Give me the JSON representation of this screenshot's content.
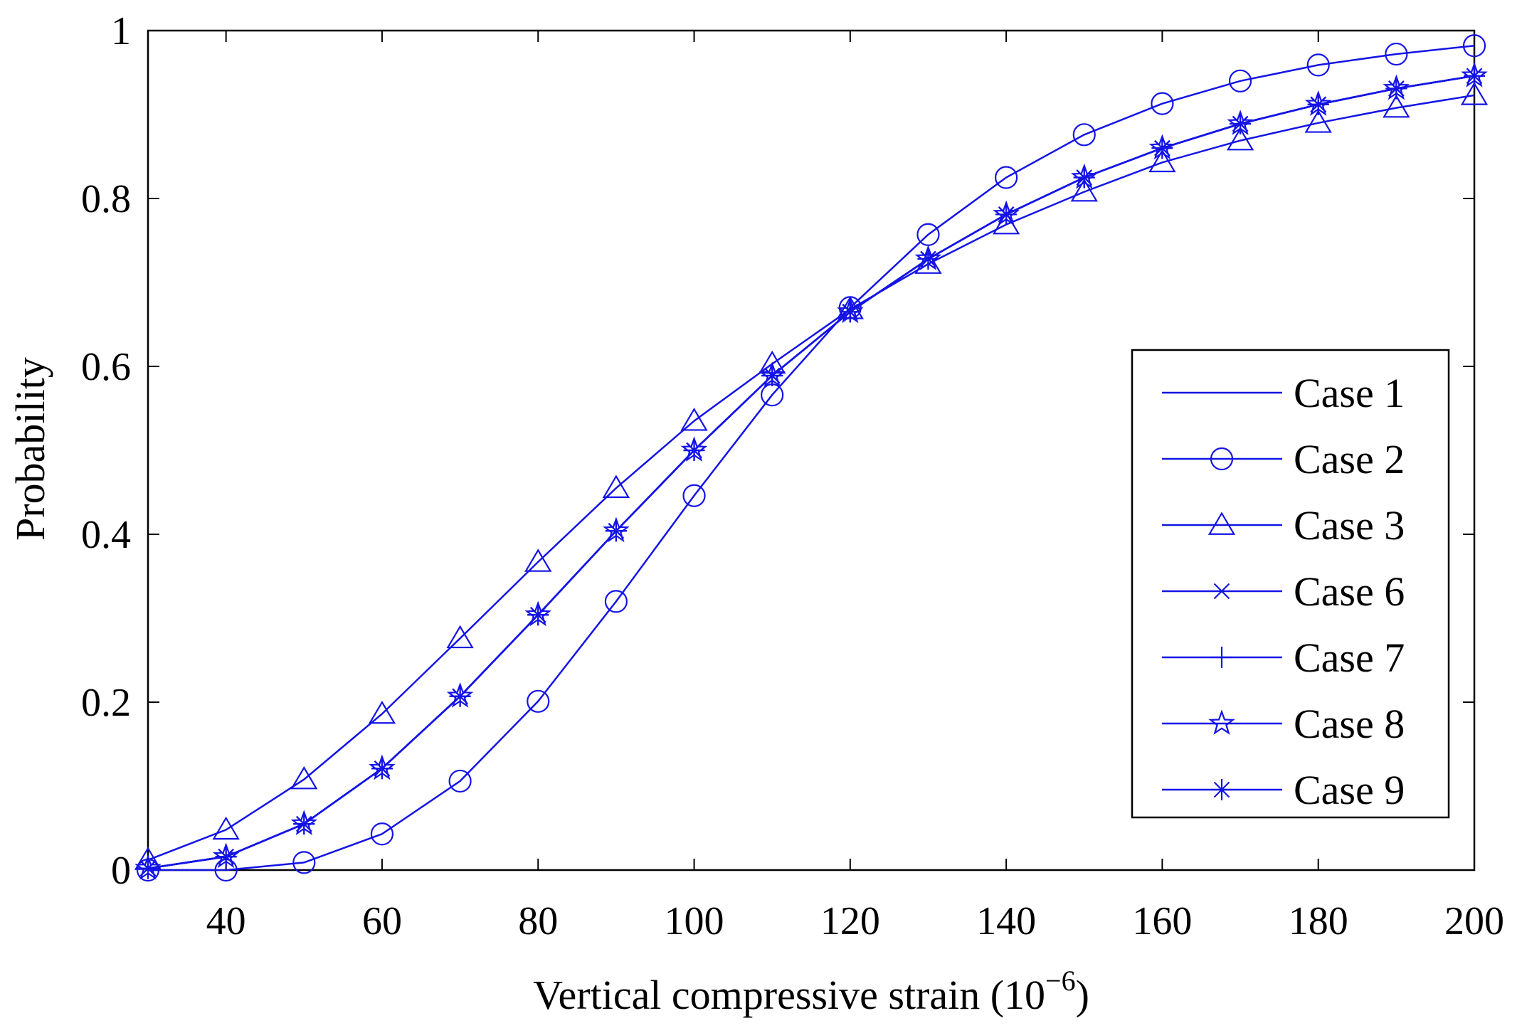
{
  "chart_data": {
    "type": "line",
    "title": "",
    "xlabel": "Vertical compressive strain (10",
    "xlabel_exponent": "−6",
    "xlabel_close": ")",
    "ylabel": "Probability",
    "xlim": [
      30,
      200
    ],
    "ylim": [
      0,
      1
    ],
    "xticks": [
      40,
      60,
      80,
      100,
      120,
      140,
      160,
      180,
      200
    ],
    "yticks": [
      0,
      0.2,
      0.4,
      0.6,
      0.8,
      1
    ],
    "ytick_labels": [
      "0",
      "0.2",
      "0.4",
      "0.6",
      "0.8",
      "1"
    ],
    "grid": false,
    "legend_position": "right",
    "line_color": "#1414e6",
    "x": [
      30,
      40,
      50,
      60,
      70,
      80,
      90,
      100,
      110,
      120,
      130,
      140,
      150,
      160,
      170,
      180,
      190,
      200
    ],
    "series": [
      {
        "name": "Case 1",
        "marker": "none",
        "values": [
          0.002,
          0.016,
          0.055,
          0.121,
          0.207,
          0.304,
          0.404,
          0.5,
          0.589,
          0.665,
          0.728,
          0.781,
          0.825,
          0.86,
          0.889,
          0.912,
          0.931,
          0.946
        ]
      },
      {
        "name": "Case 2",
        "marker": "circle",
        "values": [
          0.0,
          0.0,
          0.009,
          0.043,
          0.106,
          0.201,
          0.32,
          0.446,
          0.566,
          0.67,
          0.757,
          0.825,
          0.876,
          0.913,
          0.94,
          0.959,
          0.972,
          0.982
        ]
      },
      {
        "name": "Case 3",
        "marker": "triangle",
        "values": [
          0.012,
          0.048,
          0.108,
          0.186,
          0.276,
          0.367,
          0.455,
          0.535,
          0.603,
          0.668,
          0.722,
          0.769,
          0.808,
          0.843,
          0.869,
          0.89,
          0.908,
          0.923
        ]
      },
      {
        "name": "Case 6",
        "marker": "x",
        "values": [
          0.002,
          0.016,
          0.055,
          0.121,
          0.207,
          0.304,
          0.404,
          0.5,
          0.589,
          0.665,
          0.728,
          0.781,
          0.825,
          0.86,
          0.889,
          0.912,
          0.931,
          0.946
        ]
      },
      {
        "name": "Case 7",
        "marker": "plus",
        "values": [
          0.002,
          0.016,
          0.055,
          0.121,
          0.207,
          0.304,
          0.404,
          0.5,
          0.589,
          0.665,
          0.728,
          0.781,
          0.825,
          0.86,
          0.889,
          0.912,
          0.931,
          0.946
        ]
      },
      {
        "name": "Case 8",
        "marker": "pentagram",
        "values": [
          0.002,
          0.016,
          0.055,
          0.121,
          0.207,
          0.304,
          0.404,
          0.5,
          0.589,
          0.665,
          0.728,
          0.781,
          0.825,
          0.86,
          0.889,
          0.912,
          0.931,
          0.946
        ]
      },
      {
        "name": "Case 9",
        "marker": "asterisk",
        "values": [
          0.002,
          0.016,
          0.055,
          0.121,
          0.207,
          0.304,
          0.404,
          0.5,
          0.589,
          0.665,
          0.728,
          0.781,
          0.825,
          0.86,
          0.889,
          0.912,
          0.931,
          0.946
        ]
      }
    ]
  }
}
